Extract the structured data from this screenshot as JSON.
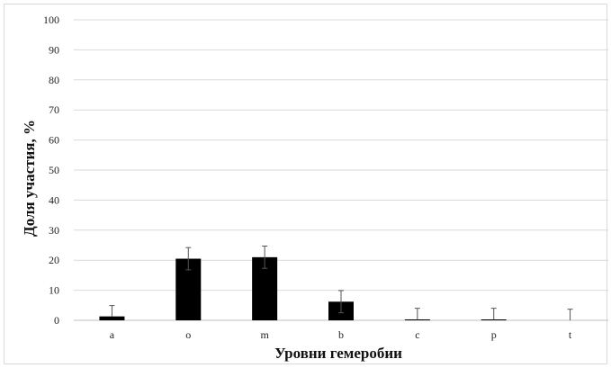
{
  "chart_data": {
    "type": "bar",
    "title": "",
    "xlabel": "Уровни гемеробии",
    "ylabel": "Доля участия, %",
    "ylim": [
      0,
      100
    ],
    "yticks": [
      0,
      10,
      20,
      30,
      40,
      50,
      60,
      70,
      80,
      90,
      100
    ],
    "grid": true,
    "legend": "none",
    "categories": [
      "a",
      "o",
      "m",
      "b",
      "c",
      "p",
      "t"
    ],
    "values": [
      1.3,
      20.5,
      21.0,
      6.2,
      0.3,
      0.3,
      0
    ],
    "error_upper": [
      3.6,
      3.7,
      3.7,
      3.7,
      3.7,
      3.7,
      3.7
    ],
    "error_lower": [
      0,
      3.7,
      3.7,
      3.7,
      0,
      0,
      0
    ],
    "colors": {
      "bar": "#000000",
      "grid": "#d9d9d9",
      "axis": "#bfbfbf",
      "error": "#555555"
    }
  }
}
